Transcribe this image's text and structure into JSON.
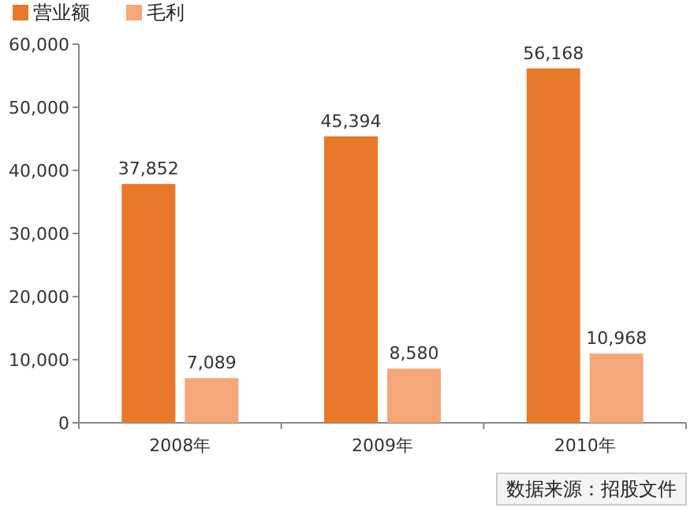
{
  "chart_data": {
    "type": "bar",
    "categories": [
      "2008年",
      "2009年",
      "2010年"
    ],
    "series": [
      {
        "name": "营业额",
        "color": "#e8792a",
        "values": [
          37852,
          45394,
          56168
        ],
        "value_labels": [
          "37,852",
          "45,394",
          "56,168"
        ]
      },
      {
        "name": "毛利",
        "color": "#f5a77a",
        "values": [
          7089,
          8580,
          10968
        ],
        "value_labels": [
          "7,089",
          "8,580",
          "10,968"
        ]
      }
    ],
    "ylim": [
      0,
      60000
    ],
    "yticks": [
      0,
      {
        "value": 10000,
        "label": "10,000"
      },
      {
        "value": 20000,
        "label": "20,000"
      },
      {
        "value": 30000,
        "label": "30,000"
      },
      {
        "value": 40000,
        "label": "40,000"
      },
      {
        "value": 50000,
        "label": "50,000"
      },
      {
        "value": 60000,
        "label": "60,000"
      }
    ],
    "legend": "top left",
    "grid": false,
    "annotations": [
      "数据来源：招股文件"
    ]
  }
}
